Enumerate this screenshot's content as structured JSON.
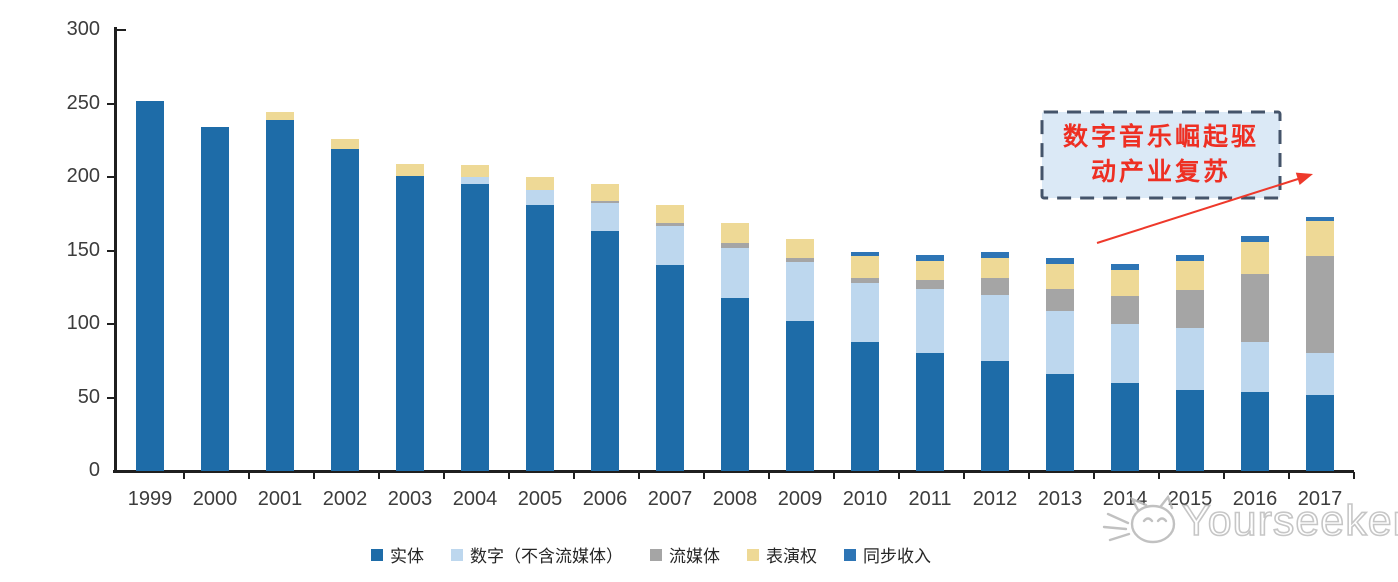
{
  "watermark": {
    "text": "Yourseeker",
    "logo_icon": "cat-sketch-icon",
    "color": "#bdbdbd"
  },
  "annotation": {
    "line1": "数字音乐崛起驱",
    "line2": "动产业复苏",
    "text_color": "#ee2f23",
    "box_fill": "#dbe9f6",
    "box_border": "#44546a",
    "arrow_color": "#ee392b"
  },
  "chart_data": {
    "type": "bar",
    "stacked": true,
    "title": "",
    "xlabel": "",
    "ylabel": "",
    "ylim": [
      0,
      300
    ],
    "yticks": [
      0,
      50,
      100,
      150,
      200,
      250,
      300
    ],
    "grid": false,
    "legend_position": "bottom",
    "categories": [
      "1999",
      "2000",
      "2001",
      "2002",
      "2003",
      "2004",
      "2005",
      "2006",
      "2007",
      "2008",
      "2009",
      "2010",
      "2011",
      "2012",
      "2013",
      "2014",
      "2015",
      "2016",
      "2017"
    ],
    "series": [
      {
        "name": "实体",
        "color": "#1e6ca8",
        "values": [
          252,
          234,
          239,
          219,
          201,
          195,
          181,
          163,
          140,
          118,
          102,
          88,
          80,
          75,
          66,
          60,
          55,
          54,
          52
        ]
      },
      {
        "name": "数字（不含流媒体）",
        "color": "#bdd7ee",
        "values": [
          0,
          0,
          0,
          0,
          0,
          5,
          10,
          19,
          27,
          34,
          40,
          40,
          44,
          45,
          43,
          40,
          42,
          34,
          28
        ]
      },
      {
        "name": "流媒体",
        "color": "#a5a5a5",
        "values": [
          0,
          0,
          0,
          0,
          0,
          0,
          0,
          2,
          2,
          3,
          3,
          3,
          6,
          11,
          15,
          19,
          26,
          46,
          66
        ]
      },
      {
        "name": "表演权",
        "color": "#eed996",
        "values": [
          0,
          0,
          5,
          7,
          8,
          8,
          9,
          11,
          12,
          14,
          13,
          15,
          13,
          14,
          17,
          18,
          20,
          22,
          24
        ]
      },
      {
        "name": "同步收入",
        "color": "#2e75b5",
        "values": [
          0,
          0,
          0,
          0,
          0,
          0,
          0,
          0,
          0,
          0,
          0,
          3,
          4,
          4,
          4,
          4,
          4,
          4,
          3
        ]
      }
    ],
    "totals": [
      252,
      234,
      244,
      226,
      209,
      208,
      200,
      195,
      181,
      169,
      158,
      149,
      147,
      149,
      145,
      141,
      147,
      160,
      173
    ]
  }
}
